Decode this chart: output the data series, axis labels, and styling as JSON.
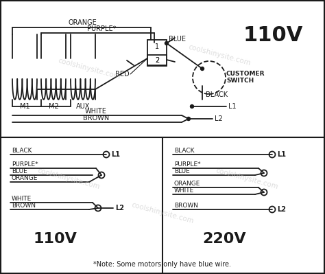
{
  "bg_color": "#ffffff",
  "line_color": "#1a1a1a",
  "title": "110V",
  "note": "*Note: Some motors only have blue wire.",
  "coil_labels": [
    "M1",
    "M2",
    "AUX"
  ],
  "bottom_left_label": "110V",
  "bottom_right_label": "220V",
  "fig_w": 4.74,
  "fig_h": 3.99,
  "dpi": 100
}
